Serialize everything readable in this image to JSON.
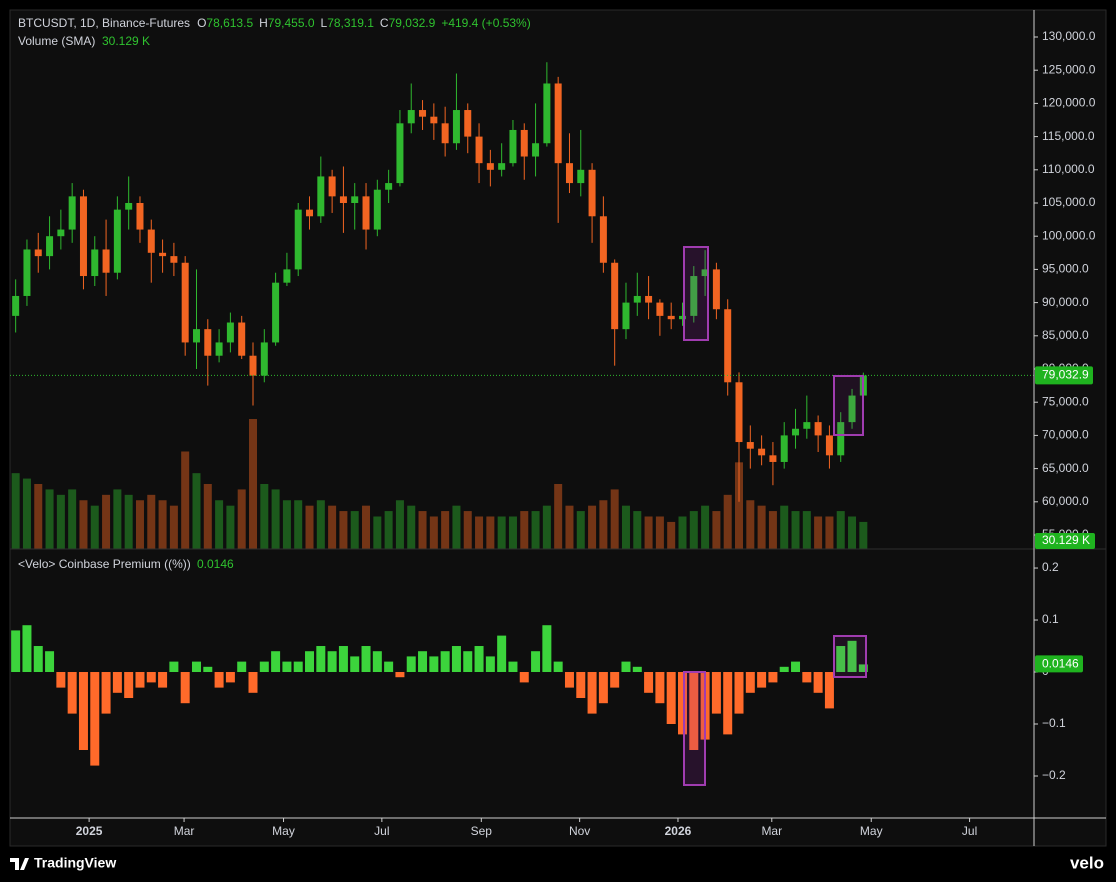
{
  "chart_data": [
    {
      "type": "candlestick",
      "title": "BTCUSDT, 1D, Binance-Futures",
      "ohlc": [
        {
          "key": "O",
          "value": 78613.5,
          "label": "78,613.5"
        },
        {
          "key": "H",
          "value": 79455.0,
          "label": "79,455.0"
        },
        {
          "key": "L",
          "value": 78319.1,
          "label": "78,319.1"
        },
        {
          "key": "C",
          "value": 79032.9,
          "label": "79,032.9"
        }
      ],
      "change_label": "+419.4 (+0.53%)",
      "volume_title": "Volume (SMA)",
      "volume_label": "30.129 K",
      "last_price_label": "79,032.9",
      "up_color": "#2fb82f",
      "down_color": "#f26522",
      "open": [
        88000,
        91000,
        98000,
        97000,
        100000,
        101000,
        106000,
        94000,
        98000,
        94500,
        104000,
        105000,
        101000,
        97500,
        97000,
        96000,
        84000,
        86000,
        82000,
        84000,
        87000,
        82000,
        79000,
        84000,
        93000,
        95000,
        104000,
        103000,
        109000,
        106000,
        105000,
        106000,
        101000,
        107000,
        108000,
        117000,
        119000,
        118000,
        117000,
        114000,
        119000,
        115000,
        111000,
        110000,
        111000,
        116000,
        112000,
        114000,
        123000,
        111000,
        108000,
        110000,
        103000,
        96000,
        86000,
        90000,
        91000,
        90000,
        88000,
        87500,
        88000,
        94000,
        95000,
        89000,
        78000,
        69000,
        68000,
        67000,
        66000,
        70000,
        71000,
        72000,
        70000,
        67000,
        72000,
        76000
      ],
      "high": [
        93500,
        99500,
        100500,
        103000,
        104000,
        108000,
        107000,
        100000,
        102500,
        106000,
        109000,
        106000,
        102500,
        99500,
        99000,
        97000,
        95000,
        87500,
        86000,
        88500,
        88000,
        84000,
        86000,
        94500,
        97500,
        105000,
        106000,
        112000,
        110000,
        110500,
        108000,
        108000,
        108500,
        110000,
        119000,
        123000,
        120500,
        120000,
        119500,
        124500,
        120000,
        117000,
        113000,
        114000,
        117500,
        117000,
        120000,
        126200,
        124000,
        115500,
        116000,
        111000,
        106000,
        96500,
        93000,
        94500,
        94000,
        90500,
        90000,
        90000,
        95500,
        97900,
        96000,
        90500,
        79500,
        71500,
        70000,
        69000,
        72000,
        74000,
        76000,
        73000,
        71500,
        73500,
        77000,
        79455
      ],
      "low": [
        85500,
        89500,
        94500,
        95000,
        98000,
        99000,
        92000,
        92500,
        91000,
        93500,
        101000,
        99000,
        93000,
        94500,
        94000,
        82000,
        80000,
        77500,
        81000,
        82500,
        81500,
        74500,
        78000,
        83500,
        92500,
        94000,
        101000,
        102000,
        103500,
        100500,
        101000,
        98000,
        100000,
        105000,
        107500,
        115500,
        116000,
        114500,
        112000,
        113000,
        112500,
        108000,
        107500,
        109000,
        110500,
        108500,
        109000,
        113500,
        102000,
        106500,
        106000,
        99000,
        94500,
        80500,
        84500,
        88000,
        87500,
        85000,
        86000,
        86500,
        87000,
        91000,
        87500,
        76000,
        60000,
        65000,
        65500,
        62500,
        65000,
        68000,
        69500,
        67500,
        65000,
        66000,
        71000,
        75500
      ],
      "close": [
        91000,
        98000,
        97000,
        100000,
        101000,
        106000,
        94000,
        98000,
        94500,
        104000,
        105000,
        101000,
        97500,
        97000,
        96000,
        84000,
        86000,
        82000,
        84000,
        87000,
        82000,
        79000,
        84000,
        93000,
        95000,
        104000,
        103000,
        109000,
        106000,
        105000,
        106000,
        101000,
        107000,
        108000,
        117000,
        119000,
        118000,
        117000,
        114000,
        119000,
        115000,
        111000,
        110000,
        111000,
        116000,
        112000,
        114000,
        123000,
        111000,
        108000,
        110000,
        103000,
        96000,
        86000,
        90000,
        91000,
        90000,
        88000,
        87500,
        88000,
        94000,
        95000,
        89000,
        78000,
        69000,
        68000,
        67000,
        66000,
        70000,
        71000,
        72000,
        70000,
        67000,
        72000,
        76000,
        79032.9
      ],
      "volume": [
        70,
        65,
        60,
        55,
        50,
        55,
        45,
        40,
        50,
        55,
        50,
        45,
        50,
        45,
        40,
        90,
        70,
        60,
        45,
        40,
        55,
        120,
        60,
        55,
        45,
        45,
        40,
        45,
        40,
        35,
        35,
        40,
        30,
        35,
        45,
        40,
        35,
        30,
        35,
        40,
        35,
        30,
        30,
        30,
        30,
        35,
        35,
        40,
        60,
        40,
        35,
        40,
        45,
        55,
        40,
        35,
        30,
        30,
        25,
        30,
        35,
        40,
        35,
        50,
        80,
        45,
        40,
        35,
        40,
        35,
        35,
        30,
        30,
        35,
        30,
        25
      ],
      "xlim": [
        0,
        90.6
      ],
      "xticks": [
        {
          "value": 7.0,
          "label": "2025"
        },
        {
          "value": 15.4,
          "label": "Mar"
        },
        {
          "value": 24.2,
          "label": "May"
        },
        {
          "value": 32.9,
          "label": "Jul"
        },
        {
          "value": 41.7,
          "label": "Sep"
        },
        {
          "value": 50.4,
          "label": "Nov"
        },
        {
          "value": 59.1,
          "label": "2026"
        },
        {
          "value": 67.4,
          "label": "Mar"
        },
        {
          "value": 76.2,
          "label": "May"
        },
        {
          "value": 84.9,
          "label": "Jul"
        }
      ],
      "ylim": [
        52892,
        134066
      ],
      "yticks": [
        {
          "value": 55000,
          "label": "55,000.0"
        },
        {
          "value": 60000,
          "label": "60,000.0"
        },
        {
          "value": 65000,
          "label": "65,000.0"
        },
        {
          "value": 70000,
          "label": "70,000.0"
        },
        {
          "value": 75000,
          "label": "75,000.0"
        },
        {
          "value": 80000,
          "label": "80,000.0"
        },
        {
          "value": 85000,
          "label": "85,000.0"
        },
        {
          "value": 90000,
          "label": "90,000.0"
        },
        {
          "value": 95000,
          "label": "95,000.0"
        },
        {
          "value": 100000,
          "label": "100,000.0"
        },
        {
          "value": 105000,
          "label": "105,000.0"
        },
        {
          "value": 110000,
          "label": "110,000.0"
        },
        {
          "value": 115000,
          "label": "115,000.0"
        },
        {
          "value": 120000,
          "label": "120,000.0"
        },
        {
          "value": 125000,
          "label": "125,000.0"
        },
        {
          "value": 130000,
          "label": "130,000.0"
        }
      ],
      "grid": false
    },
    {
      "type": "bar",
      "title": "<Velo> Coinbase Premium ((%))",
      "value_label": "0.0146",
      "up_color": "#3cd43c",
      "down_color": "#ff6a2a",
      "values": [
        0.08,
        0.09,
        0.05,
        0.04,
        -0.03,
        -0.08,
        -0.15,
        -0.18,
        -0.08,
        -0.04,
        -0.05,
        -0.03,
        -0.02,
        -0.03,
        0.02,
        -0.06,
        0.02,
        0.01,
        -0.03,
        -0.02,
        0.02,
        -0.04,
        0.02,
        0.04,
        0.02,
        0.02,
        0.04,
        0.05,
        0.04,
        0.05,
        0.03,
        0.05,
        0.04,
        0.02,
        -0.01,
        0.03,
        0.04,
        0.03,
        0.04,
        0.05,
        0.04,
        0.05,
        0.03,
        0.07,
        0.02,
        -0.02,
        0.04,
        0.09,
        0.02,
        -0.03,
        -0.05,
        -0.08,
        -0.06,
        -0.03,
        0.02,
        0.01,
        -0.04,
        -0.06,
        -0.1,
        -0.12,
        -0.15,
        -0.13,
        -0.08,
        -0.12,
        -0.08,
        -0.04,
        -0.03,
        -0.02,
        0.01,
        0.02,
        -0.02,
        -0.04,
        -0.07,
        0.05,
        0.06,
        0.0146
      ],
      "ylim": [
        -0.2808,
        0.2366
      ],
      "yticks": [
        0.2,
        0.1,
        0,
        {
          "value": -0.1,
          "label": "−0.1"
        },
        {
          "value": -0.2,
          "label": "−0.2"
        }
      ],
      "grid": false
    }
  ],
  "branding": {
    "left": "TradingView",
    "right": "velo"
  }
}
